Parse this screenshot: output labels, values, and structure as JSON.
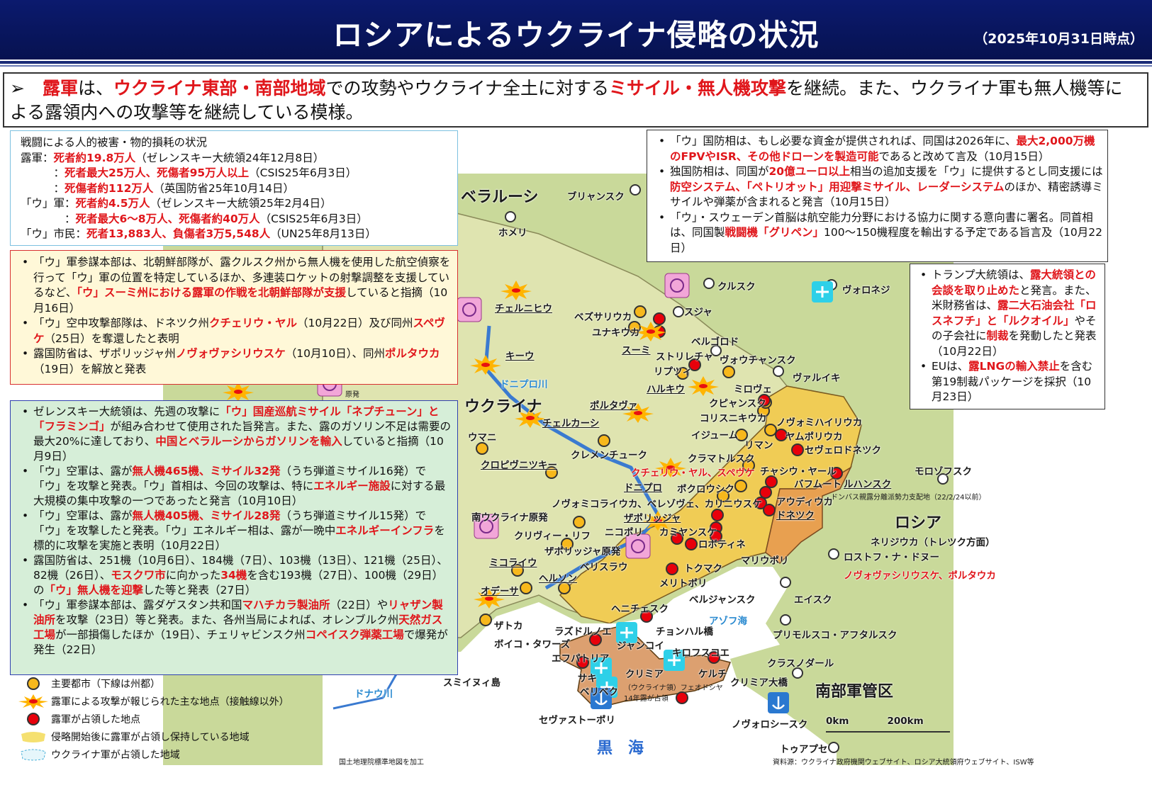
{
  "header": {
    "title": "ロシアによるウクライナ侵略の状況",
    "date": "（2025年10月31日時点）"
  },
  "summary": [
    {
      "t": "➢　"
    },
    {
      "t": "露軍",
      "r": 1
    },
    {
      "t": "は、"
    },
    {
      "t": "ウクライナ東部・南部地域",
      "r": 1
    },
    {
      "t": "での攻勢やウクライナ全土に対する"
    },
    {
      "t": "ミサイル・無人機攻撃",
      "r": 1
    },
    {
      "t": "を継続。また、ウクライナ軍も無人機等による露領内への攻撃等を継続している模様。"
    }
  ],
  "casualties": {
    "title": "戦闘による人的被害・物的損耗の状況",
    "lines": [
      [
        {
          "t": "露軍："
        },
        {
          "t": "死者約19.8万人",
          "r": 1
        },
        {
          "t": "（ゼレンスキー大統領24年12月8日）"
        }
      ],
      [
        {
          "t": "　　　："
        },
        {
          "t": "死者最大25万人、死傷者95万人以上",
          "r": 1
        },
        {
          "t": "（CSIS25年6月3日）"
        }
      ],
      [
        {
          "t": "　　　："
        },
        {
          "t": "死傷者約112万人",
          "r": 1
        },
        {
          "t": "（英国防省25年10月14日）"
        }
      ],
      [
        {
          "t": "「ウ」軍："
        },
        {
          "t": "死者約4.5万人",
          "r": 1
        },
        {
          "t": "（ゼレンスキー大統領25年2月4日）"
        }
      ],
      [
        {
          "t": "　　　　："
        },
        {
          "t": "死者最大6～8万人、死傷者約40万人",
          "r": 1
        },
        {
          "t": "（CSIS25年6月3日）"
        }
      ],
      [
        {
          "t": "「ウ」市民："
        },
        {
          "t": "死者13,883人、負傷者3万5,548人",
          "r": 1
        },
        {
          "t": "（UN25年8月13日）"
        }
      ]
    ]
  },
  "military": [
    [
      {
        "t": "「ウ」軍参謀本部は、北朝鮮部隊が、露クルスク州から無人機を使用した航空偵察を行って「ウ」軍の位置を特定しているほか、多連装ロケットの射撃調整を支援しているなど、"
      },
      {
        "t": "「ウ」スーミ州における露軍の作戦を北朝鮮部隊が支援",
        "r": 1
      },
      {
        "t": "していると指摘（10月16日）"
      }
    ],
    [
      {
        "t": "「ウ」空中攻撃部隊は、ドネツク州"
      },
      {
        "t": "クチェリウ・ヤル",
        "r": 1
      },
      {
        "t": "（10月22日）及び同州"
      },
      {
        "t": "スペヴケ",
        "r": 1
      },
      {
        "t": "（25日）を奪還したと表明"
      }
    ],
    [
      {
        "t": "露国防省は、ザポリッジャ州"
      },
      {
        "t": "ノヴォヴァシリウスケ",
        "r": 1
      },
      {
        "t": "（10月10日）、同州"
      },
      {
        "t": "ポルタウカ",
        "r": 1
      },
      {
        "t": "（19日）を解放と発表"
      }
    ]
  ],
  "attacks": [
    [
      {
        "t": "ゼレンスキー大統領は、先週の攻撃に"
      },
      {
        "t": "「ウ」国産巡航ミサイル「ネプチューン」と「フラミンゴ」",
        "r": 1
      },
      {
        "t": "が組み合わせて使用された旨発言。また、露のガソリン不足は需要の最大20%に達しており、"
      },
      {
        "t": "中国とベラルーシからガソリンを輸入",
        "r": 1
      },
      {
        "t": "していると指摘（10月9日）"
      }
    ],
    [
      {
        "t": "「ウ」空軍は、露が"
      },
      {
        "t": "無人機465機、ミサイル32発",
        "r": 1
      },
      {
        "t": "（うち弾道ミサイル16発）で「ウ」を攻撃と発表。「ウ」首相は、今回の攻撃は、特に"
      },
      {
        "t": "エネルギー施設",
        "r": 1
      },
      {
        "t": "に対する最大規模の集中攻撃の一つであったと発言（10月10日）"
      }
    ],
    [
      {
        "t": "「ウ」空軍は、露が"
      },
      {
        "t": "無人機405機、ミサイル28発",
        "r": 1
      },
      {
        "t": "（うち弾道ミサイル15発）で「ウ」を攻撃したと発表。「ウ」エネルギー相は、露が一晩中"
      },
      {
        "t": "エネルギーインフラ",
        "r": 1
      },
      {
        "t": "を標的に攻撃を実施と表明（10月22日）"
      }
    ],
    [
      {
        "t": "露国防省は、251機（10月6日）、184機（7日）、103機（13日）、121機（25日）、82機（26日）、"
      },
      {
        "t": "モスクワ市",
        "r": 1
      },
      {
        "t": "に向かった"
      },
      {
        "t": "34機",
        "r": 1
      },
      {
        "t": "を含む193機（27日）、100機（29日）の"
      },
      {
        "t": "「ウ」無人機を迎撃",
        "r": 1
      },
      {
        "t": "した等と発表（27日）"
      }
    ],
    [
      {
        "t": "「ウ」軍参謀本部は、露ダゲスタン共和国"
      },
      {
        "t": "マハチカラ製油所",
        "r": 1
      },
      {
        "t": "（22日）や"
      },
      {
        "t": "リャザン製油所",
        "r": 1
      },
      {
        "t": "を攻撃（23日）等と発表。また、各州当局によれば、オレンブルク州"
      },
      {
        "t": "天然ガス工場",
        "r": 1
      },
      {
        "t": "が一部損傷したほか（19日）、チェリャビンスク州"
      },
      {
        "t": "コペイスク弾薬工場",
        "r": 1
      },
      {
        "t": "で爆発が発生（22日）"
      }
    ]
  ],
  "intl1": [
    [
      {
        "t": "「ウ」国防相は、もし必要な資金が提供されれば、同国は2026年に、"
      },
      {
        "t": "最大2,000万機のFPVやISR、その他ドローンを製造可能",
        "r": 1
      },
      {
        "t": "であると改めて言及（10月15日）"
      }
    ],
    [
      {
        "t": "独国防相は、同国が"
      },
      {
        "t": "20億ユーロ以上",
        "r": 1
      },
      {
        "t": "相当の追加支援を「ウ」に提供するとし同支援には"
      },
      {
        "t": "防空システム、「ペトリオット」用迎撃ミサイル、レーダーシステム",
        "r": 1
      },
      {
        "t": "のほか、精密誘導ミサイルや弾薬が含まれると発言（10月15日）"
      }
    ],
    [
      {
        "t": "「ウ」・スウェーデン首脳は航空能力分野における協力に関する意向書に署名。同首相は、同国製"
      },
      {
        "t": "戦闘機「グリペン」",
        "r": 1
      },
      {
        "t": "100～150機程度を輸出する予定である旨言及（10月22日）"
      }
    ]
  ],
  "intl2": [
    [
      {
        "t": "トランプ大統領は、"
      },
      {
        "t": "露大統領との会談を取り止めた",
        "r": 1
      },
      {
        "t": "と発言。また、米財務省は、"
      },
      {
        "t": "露二大石油会社「ロスネフチ」と「ルクオイル」",
        "r": 1
      },
      {
        "t": "やその子会社に"
      },
      {
        "t": "制裁",
        "r": 1
      },
      {
        "t": "を発動したと発表（10月22日）"
      }
    ],
    [
      {
        "t": "EUは、"
      },
      {
        "t": "露LNGの輸入禁止",
        "r": 1
      },
      {
        "t": "を含む第19制裁パッケージを採択（10月23日）"
      }
    ]
  ],
  "legend": [
    "主要都市（下線は州都）",
    "露軍による攻撃が報じられた主な地点（接触線以外）",
    "露軍が占領した地点",
    "侵略開始後に露軍が占領し保持している地域",
    "ウクライナ軍が占領した地域"
  ],
  "map_labels": [
    {
      "t": "ベラルーシ",
      "c": "big"
    },
    {
      "t": "ブリャンスク"
    },
    {
      "t": "ホメリ"
    },
    {
      "t": "クルスク"
    },
    {
      "t": "ヴォロネジ"
    },
    {
      "t": "チェルニヒウ",
      "c": "ul"
    },
    {
      "t": "ベズサリウカ"
    },
    {
      "t": "ユナキウカ"
    },
    {
      "t": "スジャ"
    },
    {
      "t": "スーミ",
      "c": "ul"
    },
    {
      "t": "ベルゴロド"
    },
    {
      "t": "ストリレチャ"
    },
    {
      "t": "リプツィ"
    },
    {
      "t": "ヴォウチャンスク"
    },
    {
      "t": "ヴァルイキ"
    },
    {
      "t": "キーウ",
      "c": "ul"
    },
    {
      "t": "ドニプロ川",
      "c": "blue"
    },
    {
      "t": "ハルキウ",
      "c": "ul"
    },
    {
      "t": "ミロヴェ"
    },
    {
      "t": "クピャンスク"
    },
    {
      "t": "コリスニキウカ"
    },
    {
      "t": "ウクライナ",
      "c": "big"
    },
    {
      "t": "ポルタヴァ",
      "c": "ul"
    },
    {
      "t": "チェルカーシ",
      "c": "ul"
    },
    {
      "t": "ノヴォミハイリウカ"
    },
    {
      "t": "ヤムポリウカ"
    },
    {
      "t": "イジューム"
    },
    {
      "t": "ウマニ"
    },
    {
      "t": "クレメンチューク"
    },
    {
      "t": "セヴェロドネツク"
    },
    {
      "t": "リマン"
    },
    {
      "t": "クラマトルスク"
    },
    {
      "t": "クロピヴニツキー",
      "c": "ul"
    },
    {
      "t": "クチェリウ・ヤル、スペヴケ",
      "c": "red"
    },
    {
      "t": "チャシウ・ヤール"
    },
    {
      "t": "バフムート"
    },
    {
      "t": "ルハンスク",
      "c": "ul"
    },
    {
      "t": "モロゾフスク"
    },
    {
      "t": "ドニプロ",
      "c": "ul"
    },
    {
      "t": "ポクロウシク"
    },
    {
      "t": "ドンバス親露分離派勢力支配地（22/2/24以前）",
      "c": "small"
    },
    {
      "t": "アウディウカ"
    },
    {
      "t": "ノヴォミコライウカ、ベレゾヴェ、カリニウスケ"
    },
    {
      "t": "南ウクライナ原発"
    },
    {
      "t": "ドネツク",
      "c": "ul"
    },
    {
      "t": "ロシア",
      "c": "big"
    },
    {
      "t": "ザポリッジャ",
      "c": "ul"
    },
    {
      "t": "ニコポリ"
    },
    {
      "t": "カミヤンスケ"
    },
    {
      "t": "クリヴィー・リフ"
    },
    {
      "t": "ネリジウカ（トレツク方面）"
    },
    {
      "t": "ザポリッジャ原発"
    },
    {
      "t": "ロボティネ"
    },
    {
      "t": "ベリスラウ"
    },
    {
      "t": "ロストフ・ナ・ドヌー"
    },
    {
      "t": "ミコライウ",
      "c": "ul"
    },
    {
      "t": "トクマク"
    },
    {
      "t": "マリウポリ"
    },
    {
      "t": "ヘルソン",
      "c": "ul"
    },
    {
      "t": "ノヴォヴァシリウスケ、ポルタウカ",
      "c": "red"
    },
    {
      "t": "メリトポリ"
    },
    {
      "t": "オデーサ",
      "c": "ul"
    },
    {
      "t": "エイスク"
    },
    {
      "t": "ベルジャンスク"
    },
    {
      "t": "アゾフ海",
      "c": "blue"
    },
    {
      "t": "ヘニチェスク"
    },
    {
      "t": "ザトカ"
    },
    {
      "t": "チョンハル橋"
    },
    {
      "t": "ラズドルノエ"
    },
    {
      "t": "プリモルスコ・アフタルスク"
    },
    {
      "t": "ボイコ・タワーズ"
    },
    {
      "t": "エフパトリア"
    },
    {
      "t": "ジャンコイ"
    },
    {
      "t": "キロフスコエ"
    },
    {
      "t": "クラスノダール"
    },
    {
      "t": "クリミア"
    },
    {
      "t": "ケルチ"
    },
    {
      "t": "クリミア大橋"
    },
    {
      "t": "南部軍管区",
      "c": "big"
    },
    {
      "t": "スミイヌィ島"
    },
    {
      "t": "サキ"
    },
    {
      "t": "ベリベク"
    },
    {
      "t": "（ウクライナ領）フェオドシヤ",
      "c": "small"
    },
    {
      "t": "14年露が占領",
      "c": "small"
    },
    {
      "t": "セヴァストーポリ"
    },
    {
      "t": "ノヴォロシースク"
    },
    {
      "t": "0km　　　　200km"
    },
    {
      "t": "黒　海",
      "c": "sea"
    },
    {
      "t": "トゥアプセ"
    },
    {
      "t": "国土地理院標準地図を加工",
      "c": "small"
    },
    {
      "t": "資料源：ウクライナ政府機関ウェブサイト、ロシア大統領府ウェブサイト、ISW等",
      "c": "small"
    },
    {
      "t": "原発",
      "c": "small"
    },
    {
      "t": "ドナウ川",
      "c": "blue"
    }
  ],
  "colors": {
    "header": "#0b1a6e",
    "highlight": "#e0161b",
    "occupied": "#f0cc55",
    "occupied_pre2022": "#e8a050",
    "land": "#cbda9c",
    "major_city": "#f7b81c",
    "occupied_point": "#e8000b"
  }
}
